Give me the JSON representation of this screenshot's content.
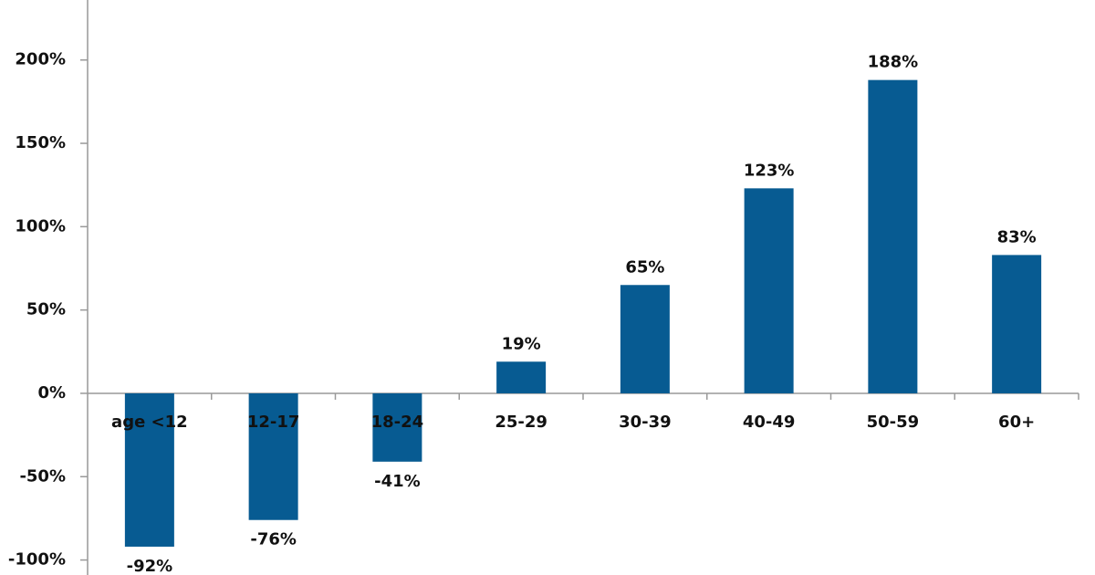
{
  "chart_data": {
    "type": "bar",
    "categories": [
      "age <12",
      "12-17",
      "18-24",
      "25-29",
      "30-39",
      "40-49",
      "50-59",
      "60+"
    ],
    "values": [
      -92,
      -76,
      -41,
      19,
      65,
      123,
      188,
      83
    ],
    "value_labels": [
      "-92%",
      "-76%",
      "-41%",
      "19%",
      "65%",
      "123%",
      "188%",
      "83%"
    ],
    "color": "#075b92",
    "ylim": [
      -109,
      236
    ],
    "yticks": [
      {
        "value": -100,
        "label": "-100%"
      },
      {
        "value": -50,
        "label": "-50%"
      },
      {
        "value": 0,
        "label": "0%"
      },
      {
        "value": 50,
        "label": "50%"
      },
      {
        "value": 100,
        "label": "100%"
      },
      {
        "value": 150,
        "label": "150%"
      },
      {
        "value": 200,
        "label": "200%"
      }
    ],
    "grid": false
  }
}
